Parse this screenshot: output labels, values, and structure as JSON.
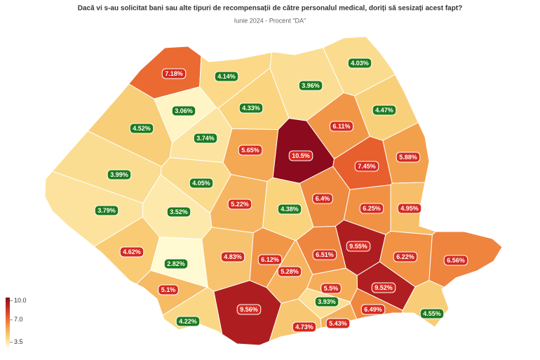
{
  "chart_data": {
    "type": "choropleth",
    "title": "Dacă vi s-au solicitat bani sau alte tipuri de recompensații de către personalul medical, doriți să sesizați acest fapt?",
    "subtitle": "Iunie 2024 - Procent \"DA\"",
    "values": [
      7.18,
      4.14,
      4.03,
      3.06,
      4.33,
      3.96,
      4.47,
      4.52,
      3.74,
      6.11,
      5.65,
      10.5,
      7.45,
      5.88,
      3.99,
      4.05,
      5.22,
      4.38,
      6.4,
      6.25,
      4.95,
      3.79,
      3.52,
      9.55,
      4.62,
      4.83,
      6.12,
      6.51,
      6.22,
      6.56,
      2.82,
      5.28,
      5.5,
      9.52,
      5.1,
      3.93,
      9.56,
      6.49,
      4.55,
      4.22,
      4.73,
      5.43
    ],
    "value_labels": [
      "7.18%",
      "4.14%",
      "4.03%",
      "3.06%",
      "4.33%",
      "3.96%",
      "4.47%",
      "4.52%",
      "3.74%",
      "6.11%",
      "5.65%",
      "10.5%",
      "7.45%",
      "5.88%",
      "3.99%",
      "4.05%",
      "5.22%",
      "4.38%",
      "6.4%",
      "6.25%",
      "4.95%",
      "3.79%",
      "3.52%",
      "9.55%",
      "4.62%",
      "4.83%",
      "6.12%",
      "6.51%",
      "6.22%",
      "6.56%",
      "2.82%",
      "5.28%",
      "5.5%",
      "9.52%",
      "5.1%",
      "3.93%",
      "9.56%",
      "6.49%",
      "4.55%",
      "4.22%",
      "4.73%",
      "5.43%"
    ],
    "badge_colors": [
      "#d42a20",
      "#1d7a1d",
      "#1d7a1d",
      "#1d7a1d",
      "#1d7a1d",
      "#1d7a1d",
      "#1d7a1d",
      "#1d7a1d",
      "#1d7a1d",
      "#d42a20",
      "#d42a20",
      "#d42a20",
      "#d42a20",
      "#d42a20",
      "#1d7a1d",
      "#1d7a1d",
      "#d42a20",
      "#1d7a1d",
      "#d42a20",
      "#d42a20",
      "#d42a20",
      "#1d7a1d",
      "#1d7a1d",
      "#d42a20",
      "#d42a20",
      "#d42a20",
      "#d42a20",
      "#d42a20",
      "#d42a20",
      "#d42a20",
      "#1d7a1d",
      "#d42a20",
      "#d42a20",
      "#d42a20",
      "#d42a20",
      "#1d7a1d",
      "#d42a20",
      "#d42a20",
      "#1d7a1d",
      "#1d7a1d",
      "#d42a20",
      "#d42a20"
    ],
    "colorscale": {
      "lim": [
        2.8,
        10.5
      ],
      "colors": [
        "#fffbd2",
        "#fad47e",
        "#f3a04c",
        "#e8602c",
        "#c42a22",
        "#8b0a1d"
      ],
      "ticks": [
        {
          "value": 10,
          "label": "10.0"
        },
        {
          "value": 7,
          "label": "7.0"
        },
        3.5
      ]
    }
  }
}
